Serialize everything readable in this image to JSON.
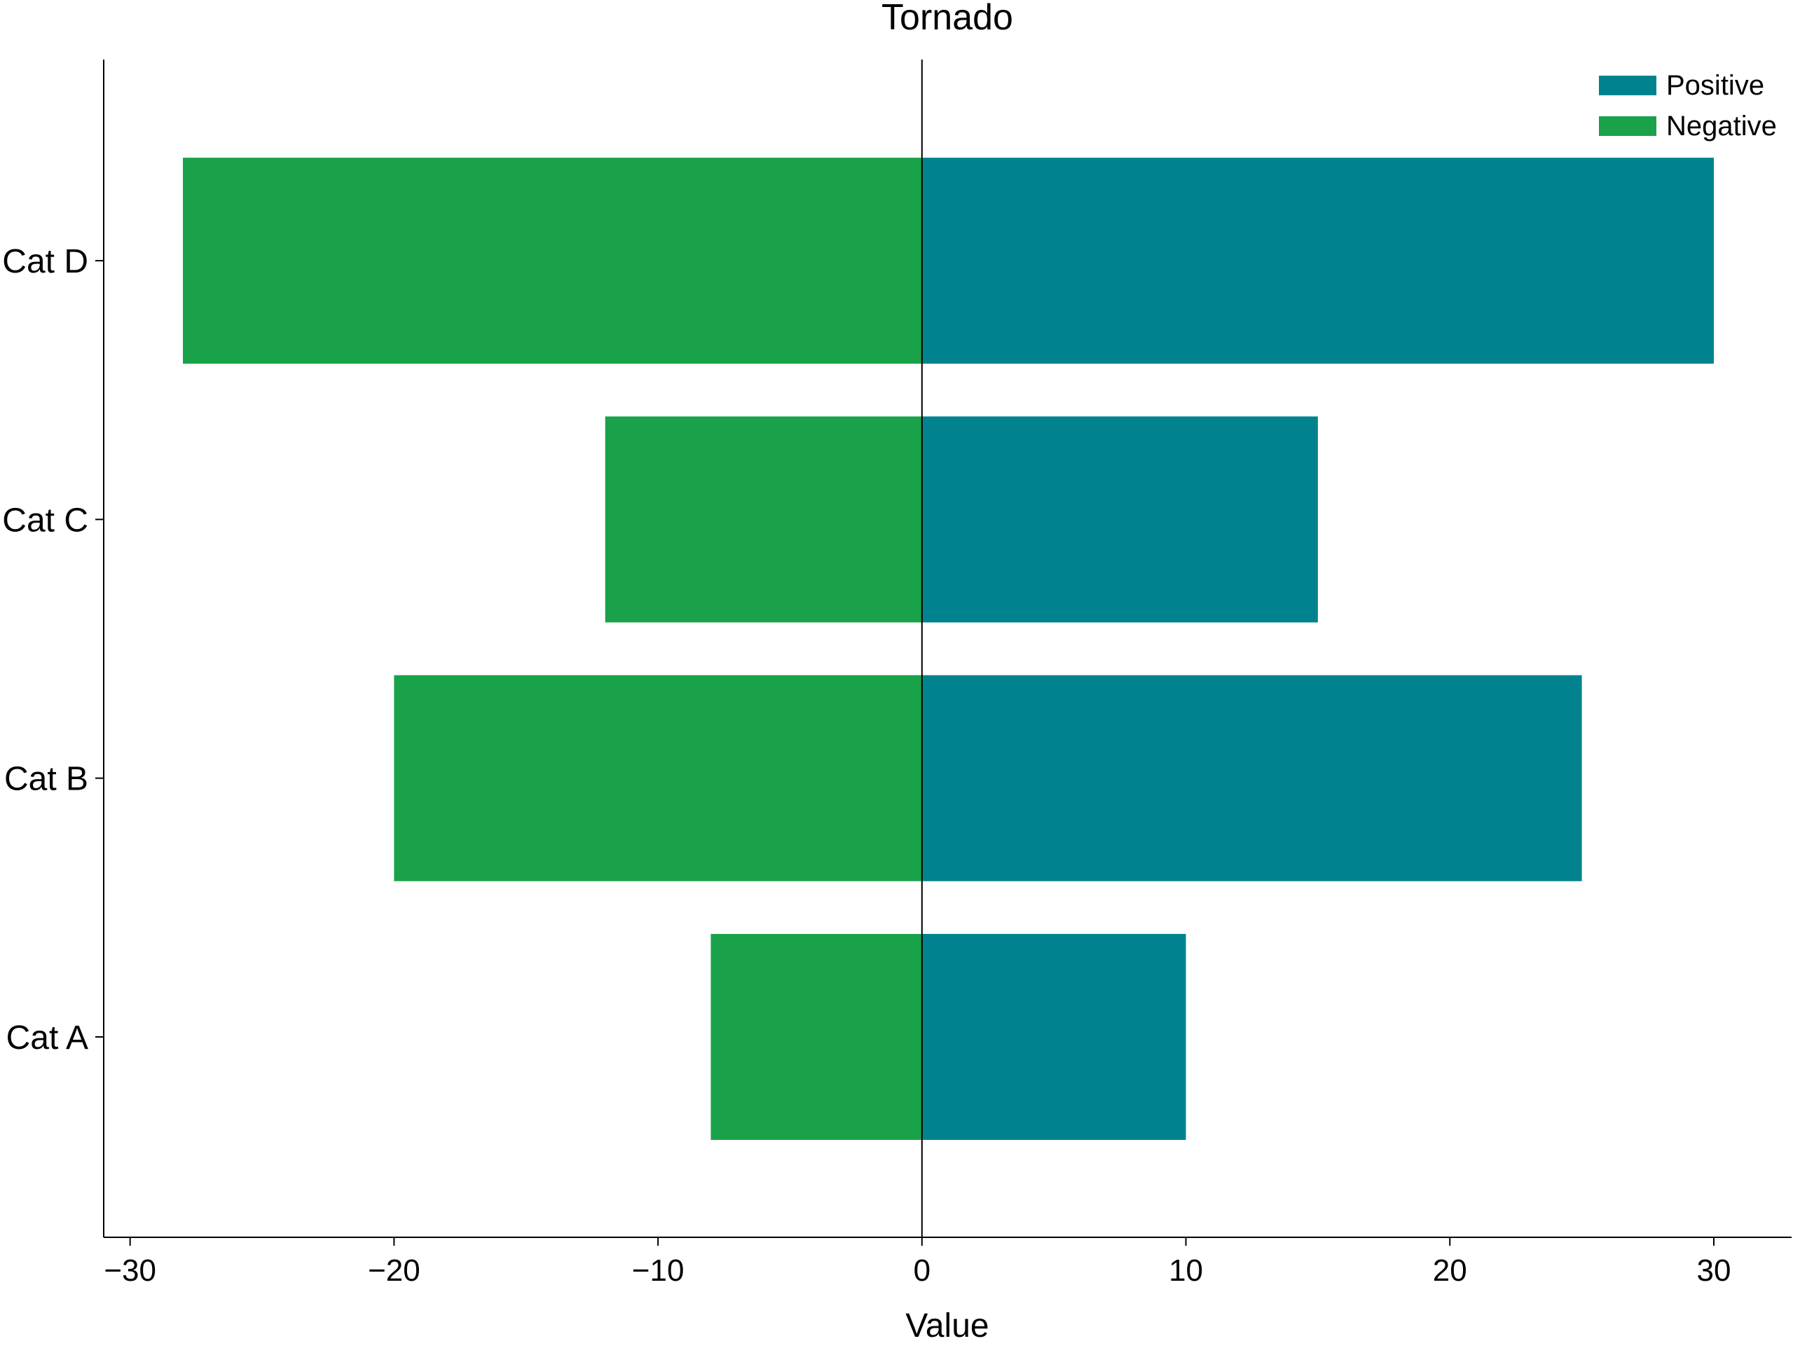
{
  "chart_data": {
    "type": "bar",
    "orientation": "horizontal",
    "title": "Tornado",
    "xlabel": "Value",
    "ylabel": "",
    "categories": [
      "Cat A",
      "Cat B",
      "Cat C",
      "Cat D"
    ],
    "series": [
      {
        "name": "Positive",
        "values": [
          10,
          25,
          15,
          30
        ],
        "color": "#00838f"
      },
      {
        "name": "Negative",
        "values": [
          -8,
          -20,
          -12,
          -28
        ],
        "color": "#19a24a"
      }
    ],
    "xlim": [
      -31,
      33
    ],
    "xticks": [
      -30,
      -20,
      -10,
      0,
      10,
      20,
      30
    ],
    "xtick_labels": [
      "−30",
      "−20",
      "−10",
      "0",
      "10",
      "20",
      "30"
    ],
    "legend_position": "top-right",
    "grid": false,
    "zero_line": true
  }
}
